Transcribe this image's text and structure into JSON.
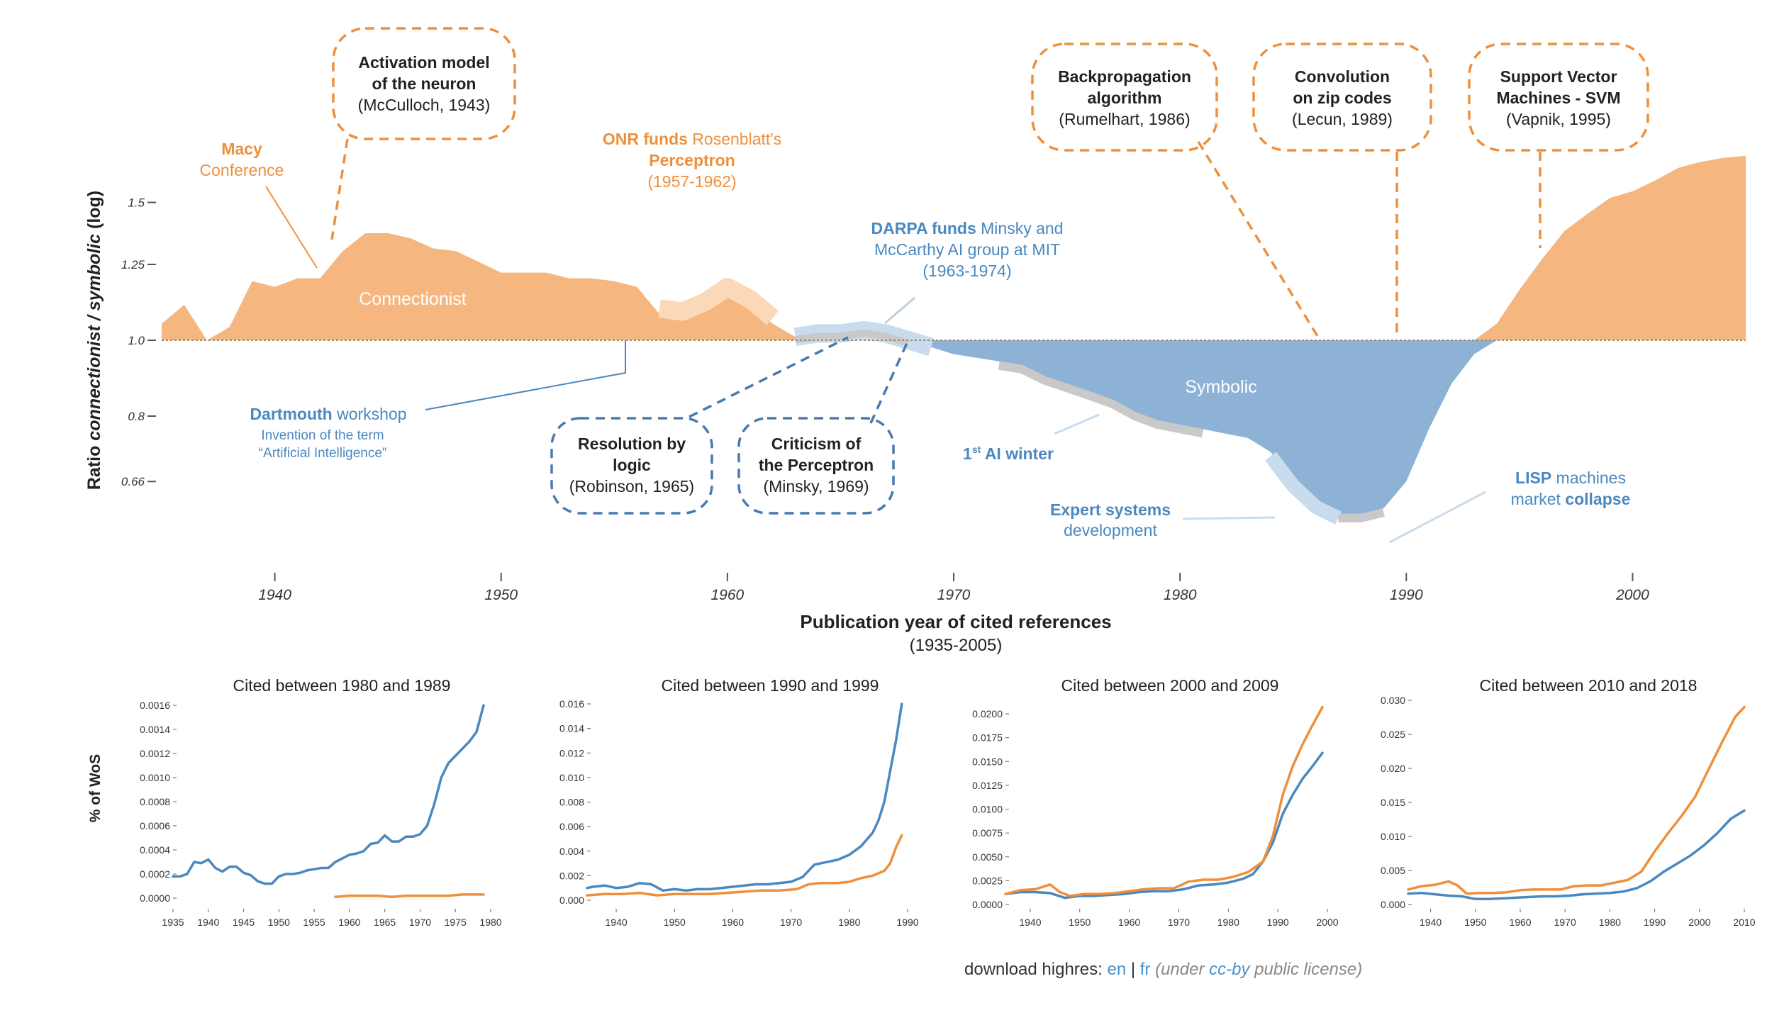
{
  "colors": {
    "connectionist": "#f5b680",
    "connectionist_light": "#fbd9b8",
    "symbolic": "#8db2d6",
    "symbolic_light": "#c9dced",
    "orange": "#ef8f3b",
    "blue": "#4a88c0",
    "dark_blue_line": "#4879b0",
    "grey": "#c9c9c9"
  },
  "chart_data": [
    {
      "type": "area",
      "title": "",
      "xlabel": "Publication year of cited references",
      "xlabel_sub": "(1935-2005)",
      "ylabel_prefix": "Ratio ",
      "ylabel_italic": "connectionist / symbolic",
      "ylabel_suffix": " (log)",
      "xlim": [
        1935,
        2005
      ],
      "xticks": [
        1940,
        1950,
        1960,
        1970,
        1980,
        1990,
        2000
      ],
      "yticks": [
        {
          "value": 1.5,
          "label": "1.5"
        },
        {
          "value": 1.25,
          "label": "1.25"
        },
        {
          "value": 1.0,
          "label": "1.0"
        },
        {
          "value": 0.8,
          "label": "0.8"
        },
        {
          "value": 0.66,
          "label": "0.66"
        }
      ],
      "ylim": [
        0.6,
        1.75
      ],
      "area_labels": {
        "connectionist": "Connectionist",
        "symbolic": "Symbolic"
      },
      "series": [
        {
          "name": "ratio",
          "x": [
            1935,
            1936,
            1937,
            1938,
            1939,
            1940,
            1941,
            1942,
            1943,
            1944,
            1945,
            1946,
            1947,
            1948,
            1949,
            1950,
            1951,
            1952,
            1953,
            1954,
            1955,
            1956,
            1957,
            1958,
            1959,
            1960,
            1961,
            1962,
            1963,
            1964,
            1965,
            1966,
            1967,
            1968,
            1969,
            1970,
            1971,
            1972,
            1973,
            1974,
            1975,
            1976,
            1977,
            1978,
            1979,
            1980,
            1981,
            1982,
            1983,
            1984,
            1985,
            1986,
            1987,
            1988,
            1989,
            1990,
            1991,
            1992,
            1993,
            1994,
            1995,
            1996,
            1997,
            1998,
            1999,
            2000,
            2001,
            2002,
            2003,
            2004,
            2005
          ],
          "y": [
            1.05,
            1.11,
            1.0,
            1.04,
            1.19,
            1.17,
            1.2,
            1.2,
            1.3,
            1.37,
            1.37,
            1.35,
            1.31,
            1.3,
            1.26,
            1.22,
            1.22,
            1.22,
            1.2,
            1.2,
            1.19,
            1.17,
            1.08,
            1.07,
            1.1,
            1.15,
            1.11,
            1.05,
            1.01,
            1.02,
            1.02,
            1.03,
            1.02,
            1.0,
            0.98,
            0.96,
            0.95,
            0.94,
            0.93,
            0.9,
            0.88,
            0.86,
            0.84,
            0.81,
            0.79,
            0.78,
            0.77,
            0.76,
            0.75,
            0.72,
            0.66,
            0.62,
            0.6,
            0.6,
            0.61,
            0.66,
            0.77,
            0.88,
            0.96,
            1.05,
            1.16,
            1.27,
            1.38,
            1.45,
            1.52,
            1.55,
            1.6,
            1.66,
            1.69,
            1.71,
            1.72
          ]
        }
      ]
    },
    {
      "type": "line",
      "title": "Cited between 1980 and 1989",
      "xlim": [
        1935,
        1980
      ],
      "xticks": [
        1935,
        1940,
        1945,
        1950,
        1955,
        1960,
        1965,
        1970,
        1975,
        1980
      ],
      "ylim": [
        0,
        0.0016
      ],
      "yticks": [
        "0.0000",
        "0.0002",
        "0.0004",
        "0.0006",
        "0.0008",
        "0.0010",
        "0.0012",
        "0.0014",
        "0.0016"
      ],
      "series": [
        {
          "name": "en",
          "color": "#4a88c0",
          "x": [
            1935,
            1936,
            1937,
            1938,
            1939,
            1940,
            1941,
            1942,
            1943,
            1944,
            1945,
            1946,
            1947,
            1948,
            1949,
            1950,
            1951,
            1952,
            1953,
            1954,
            1955,
            1956,
            1957,
            1958,
            1959,
            1960,
            1961,
            1962,
            1963,
            1964,
            1965,
            1966,
            1967,
            1968,
            1969,
            1970,
            1971,
            1972,
            1973,
            1974,
            1975,
            1976,
            1977,
            1978,
            1979
          ],
          "y": [
            0.00018,
            0.00018,
            0.0002,
            0.0003,
            0.00029,
            0.00032,
            0.00025,
            0.00022,
            0.00026,
            0.00026,
            0.00021,
            0.00019,
            0.00014,
            0.00012,
            0.00012,
            0.00018,
            0.0002,
            0.0002,
            0.00021,
            0.00023,
            0.00024,
            0.00025,
            0.00025,
            0.0003,
            0.00033,
            0.00036,
            0.00037,
            0.00039,
            0.00045,
            0.00046,
            0.00052,
            0.00047,
            0.00047,
            0.00051,
            0.00051,
            0.00053,
            0.0006,
            0.00078,
            0.001,
            0.00112,
            0.00118,
            0.00124,
            0.0013,
            0.00138,
            0.0016
          ]
        },
        {
          "name": "fr",
          "color": "#ef8f3b",
          "x": [
            1958,
            1960,
            1962,
            1964,
            1966,
            1968,
            1970,
            1972,
            1974,
            1976,
            1978,
            1979
          ],
          "y": [
            1e-05,
            2e-05,
            2e-05,
            2e-05,
            1e-05,
            2e-05,
            2e-05,
            2e-05,
            2e-05,
            3e-05,
            3e-05,
            3e-05
          ]
        }
      ]
    },
    {
      "type": "line",
      "title": "Cited between 1990 and 1999",
      "xlim": [
        1935,
        1990
      ],
      "xticks": [
        1940,
        1950,
        1960,
        1970,
        1980,
        1990
      ],
      "ylim": [
        0,
        0.016
      ],
      "yticks": [
        "0.000",
        "0.002",
        "0.004",
        "0.006",
        "0.008",
        "0.010",
        "0.012",
        "0.014",
        "0.016"
      ],
      "series": [
        {
          "name": "en",
          "color": "#4a88c0",
          "x": [
            1935,
            1936,
            1938,
            1940,
            1942,
            1944,
            1946,
            1948,
            1950,
            1952,
            1954,
            1956,
            1958,
            1960,
            1962,
            1964,
            1966,
            1968,
            1970,
            1972,
            1974,
            1976,
            1978,
            1980,
            1982,
            1984,
            1985,
            1986,
            1987,
            1988,
            1989
          ],
          "y": [
            0.001,
            0.0011,
            0.0012,
            0.001,
            0.0011,
            0.0014,
            0.0013,
            0.0008,
            0.0009,
            0.0008,
            0.0009,
            0.0009,
            0.001,
            0.0011,
            0.0012,
            0.0013,
            0.0013,
            0.0014,
            0.0015,
            0.0019,
            0.0029,
            0.0031,
            0.0033,
            0.0037,
            0.0044,
            0.0055,
            0.0065,
            0.008,
            0.0105,
            0.013,
            0.016
          ]
        },
        {
          "name": "fr",
          "color": "#ef8f3b",
          "x": [
            1935,
            1938,
            1941,
            1944,
            1947,
            1950,
            1953,
            1956,
            1959,
            1962,
            1965,
            1968,
            1971,
            1973,
            1975,
            1978,
            1980,
            1982,
            1984,
            1986,
            1987,
            1988,
            1989
          ],
          "y": [
            0.0004,
            0.0005,
            0.0005,
            0.0006,
            0.0004,
            0.0005,
            0.0005,
            0.0005,
            0.0006,
            0.0007,
            0.0008,
            0.0008,
            0.0009,
            0.0013,
            0.0014,
            0.0014,
            0.0015,
            0.0018,
            0.002,
            0.0024,
            0.003,
            0.0043,
            0.0053
          ]
        }
      ]
    },
    {
      "type": "line",
      "title": "Cited between 2000 and 2009",
      "xlim": [
        1935,
        2000
      ],
      "xticks": [
        1940,
        1950,
        1960,
        1970,
        1980,
        1990,
        2000
      ],
      "ylim": [
        0,
        0.02
      ],
      "yticks": [
        "0.0000",
        "0.0025",
        "0.0050",
        "0.0075",
        "0.0100",
        "0.0125",
        "0.0150",
        "0.0175",
        "0.0200"
      ],
      "series": [
        {
          "name": "en",
          "color": "#4a88c0",
          "x": [
            1935,
            1938,
            1941,
            1944,
            1947,
            1950,
            1953,
            1956,
            1959,
            1962,
            1965,
            1968,
            1971,
            1974,
            1977,
            1980,
            1983,
            1985,
            1987,
            1989,
            1991,
            1993,
            1995,
            1997,
            1999
          ],
          "y": [
            0.0011,
            0.0013,
            0.0013,
            0.0012,
            0.0007,
            0.0009,
            0.0009,
            0.001,
            0.0011,
            0.0013,
            0.0014,
            0.0014,
            0.0016,
            0.002,
            0.0021,
            0.0023,
            0.0027,
            0.0032,
            0.0045,
            0.0065,
            0.0095,
            0.0115,
            0.0132,
            0.0145,
            0.0159
          ]
        },
        {
          "name": "fr",
          "color": "#ef8f3b",
          "x": [
            1935,
            1938,
            1941,
            1944,
            1946,
            1948,
            1951,
            1954,
            1957,
            1960,
            1963,
            1966,
            1969,
            1972,
            1975,
            1978,
            1981,
            1984,
            1987,
            1989,
            1991,
            1993,
            1995,
            1997,
            1999
          ],
          "y": [
            0.0011,
            0.0015,
            0.0016,
            0.0021,
            0.0013,
            0.0009,
            0.0011,
            0.0011,
            0.0012,
            0.0014,
            0.0016,
            0.0017,
            0.0017,
            0.0024,
            0.0026,
            0.0026,
            0.0029,
            0.0034,
            0.0045,
            0.0072,
            0.0115,
            0.0145,
            0.0168,
            0.0188,
            0.0207
          ]
        }
      ]
    },
    {
      "type": "line",
      "title": "Cited between 2010 and 2018",
      "xlim": [
        1935,
        2010
      ],
      "xticks": [
        1940,
        1950,
        1960,
        1970,
        1980,
        1990,
        2000,
        2010
      ],
      "ylim": [
        0,
        0.03
      ],
      "yticks": [
        "0.000",
        "0.005",
        "0.010",
        "0.015",
        "0.020",
        "0.025",
        "0.030"
      ],
      "series": [
        {
          "name": "en",
          "color": "#4a88c0",
          "x": [
            1935,
            1938,
            1941,
            1944,
            1947,
            1950,
            1953,
            1956,
            1959,
            1962,
            1965,
            1968,
            1971,
            1974,
            1977,
            1980,
            1983,
            1986,
            1989,
            1992,
            1995,
            1998,
            2001,
            2004,
            2007,
            2010
          ],
          "y": [
            0.0016,
            0.0017,
            0.0015,
            0.0013,
            0.0012,
            0.0008,
            0.0008,
            0.0009,
            0.001,
            0.0011,
            0.0012,
            0.0012,
            0.0013,
            0.0015,
            0.0016,
            0.0017,
            0.0019,
            0.0024,
            0.0034,
            0.0048,
            0.006,
            0.0072,
            0.0087,
            0.0105,
            0.0126,
            0.0138
          ]
        },
        {
          "name": "fr",
          "color": "#ef8f3b",
          "x": [
            1935,
            1938,
            1941,
            1944,
            1946,
            1948,
            1951,
            1954,
            1957,
            1960,
            1963,
            1966,
            1969,
            1972,
            1975,
            1978,
            1981,
            1984,
            1987,
            1990,
            1993,
            1996,
            1999,
            2002,
            2005,
            2008,
            2010
          ],
          "y": [
            0.0022,
            0.0027,
            0.0029,
            0.0034,
            0.0028,
            0.0016,
            0.0017,
            0.0017,
            0.0018,
            0.0021,
            0.0022,
            0.0022,
            0.0022,
            0.0027,
            0.0028,
            0.0028,
            0.0032,
            0.0036,
            0.0048,
            0.0078,
            0.0105,
            0.013,
            0.0158,
            0.0198,
            0.0238,
            0.0276,
            0.029
          ]
        }
      ]
    }
  ],
  "small_charts_ylabel": "% of WoS",
  "annotations": {
    "macy": {
      "bold": "Macy",
      "rest": "Conference"
    },
    "activation": {
      "line1": "Activation model",
      "line2": "of the neuron",
      "line3": "(McCulloch, 1943)"
    },
    "onr": {
      "bold": "ONR funds",
      "rest": " Rosenblatt's",
      "line2": "Perceptron",
      "line3": "(1957-1962)"
    },
    "darpa": {
      "bold": "DARPA funds",
      "rest": " Minsky and",
      "line2": "McCarthy AI group at MIT",
      "line3": "(1963-1974)"
    },
    "dartmouth": {
      "bold": "Dartmouth",
      "rest": " workshop",
      "line2": "Invention of the term",
      "line3": "“Artificial Intelligence”"
    },
    "resolution": {
      "line1": "Resolution by",
      "line2": "logic",
      "line3": "(Robinson, 1965)"
    },
    "criticism": {
      "line1": "Criticism of",
      "line2": "the Perceptron",
      "line3": "(Minsky, 1969)"
    },
    "ai_winter": {
      "pre": "1",
      "sup": "st",
      "post": " AI winter"
    },
    "expert": {
      "bold": "Expert systems",
      "line2": "development"
    },
    "lisp": {
      "bold": "LISP",
      "rest": " machines",
      "line2a": "market ",
      "line2b": "collapse"
    },
    "backprop": {
      "line1": "Backpropagation",
      "line2": "algorithm",
      "line3": "(Rumelhart, 1986)"
    },
    "convolution": {
      "line1": "Convolution",
      "line2": "on zip codes",
      "line3": "(Lecun, 1989)"
    },
    "svm": {
      "line1": "Support Vector",
      "line2": "Machines - SVM",
      "line3": "(Vapnik, 1995)"
    }
  },
  "footer": {
    "prefix": "download highres: ",
    "en": "en",
    "sep": " | ",
    "fr": "fr",
    "license_pre": " (under ",
    "license_link": "cc-by",
    "license_post": " public license)"
  }
}
